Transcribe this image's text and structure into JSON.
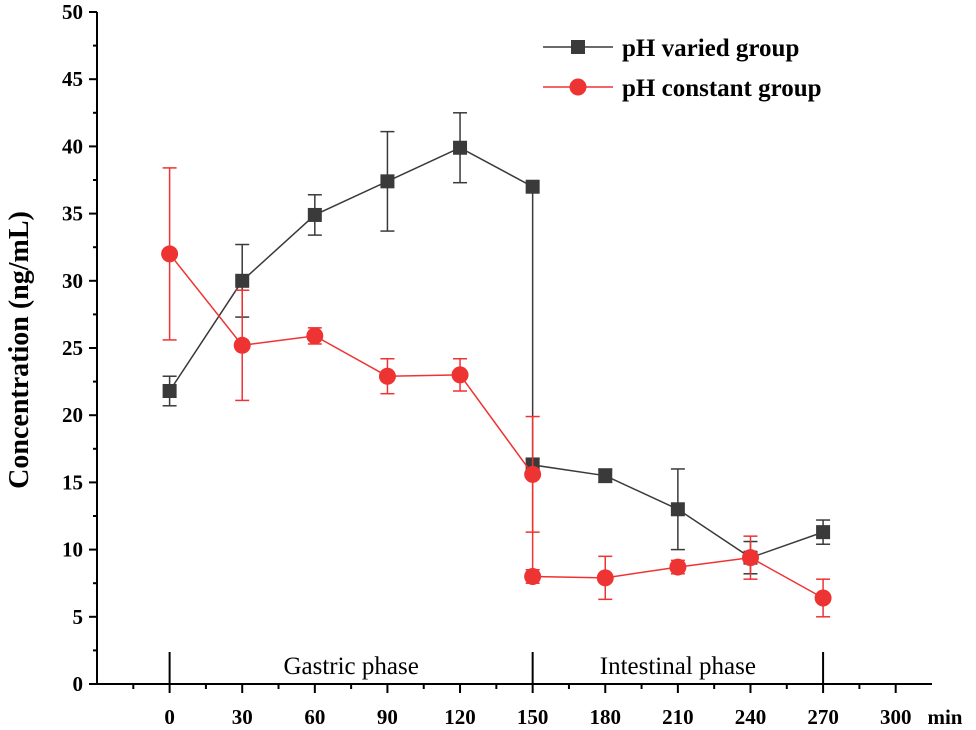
{
  "chart_data": {
    "type": "line",
    "title": "",
    "xlabel": "",
    "x_unit": "min",
    "ylabel": "Concentration (ng/mL)",
    "xlim": [
      -30,
      315
    ],
    "ylim": [
      0,
      50
    ],
    "x_ticks": [
      0,
      30,
      60,
      90,
      120,
      150,
      180,
      210,
      240,
      270,
      300
    ],
    "y_ticks": [
      0,
      5,
      10,
      15,
      20,
      25,
      30,
      35,
      40,
      45,
      50
    ],
    "grid": false,
    "legend_position": "top-right",
    "series": [
      {
        "name": "pH varied group",
        "color": "#3a3a3a",
        "marker": "square",
        "x": [
          0,
          30,
          60,
          90,
          120,
          150,
          150,
          180,
          210,
          240,
          270
        ],
        "y": [
          21.8,
          30.0,
          34.9,
          37.4,
          39.9,
          37.0,
          16.3,
          15.5,
          13.0,
          9.4,
          11.3
        ],
        "err": [
          1.1,
          2.7,
          1.5,
          3.7,
          2.6,
          0,
          0.5,
          0.5,
          3.0,
          1.2,
          0.9
        ]
      },
      {
        "name": "pH constant group",
        "color": "#ee3333",
        "marker": "circle",
        "x": [
          0,
          30,
          60,
          90,
          120,
          150,
          150,
          180,
          210,
          240,
          270
        ],
        "y": [
          32.0,
          25.2,
          25.9,
          22.9,
          23.0,
          15.6,
          8.0,
          7.9,
          8.7,
          9.4,
          6.4
        ],
        "err": [
          6.4,
          4.1,
          0.6,
          1.3,
          1.2,
          4.3,
          0.5,
          1.6,
          0.5,
          1.6,
          1.4
        ]
      }
    ],
    "annotations": {
      "phases": [
        {
          "label": "Gastric phase",
          "x_start": 0,
          "x_end": 150
        },
        {
          "label": "Intestinal phase",
          "x_start": 150,
          "x_end": 270
        }
      ]
    }
  }
}
